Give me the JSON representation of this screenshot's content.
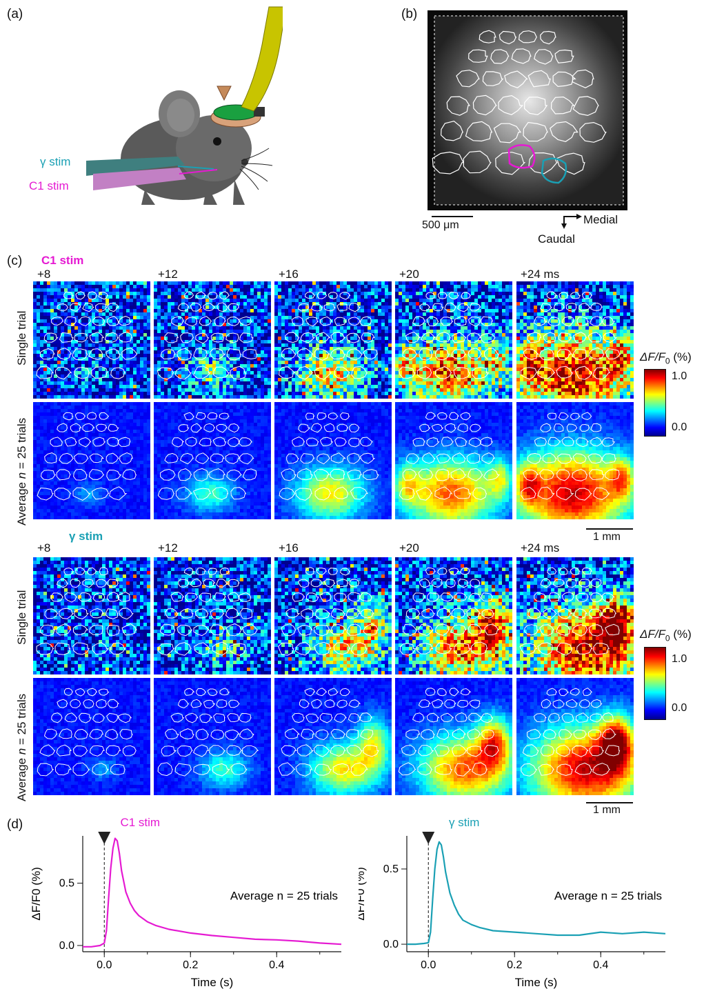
{
  "panel_a": {
    "label": "(a)",
    "gamma_stim": "γ stim",
    "c1_stim": "C1 stim",
    "colors": {
      "gamma": "#1aa0b4",
      "c1": "#e51ad2",
      "fiber": "#c8c400",
      "mouse": "#555555"
    }
  },
  "panel_b": {
    "label": "(b)",
    "scale_label": "500 μm",
    "medial": "Medial",
    "caudal": "Caudal",
    "colors": {
      "c1_roi": "#e51ad2",
      "gamma_roi": "#1aa0b4"
    }
  },
  "panel_c": {
    "label": "(c)",
    "c1_title": "C1 stim",
    "gamma_title": "γ stim",
    "time_labels": [
      "+8",
      "+12",
      "+16",
      "+20",
      "+24 ms"
    ],
    "row_single": "Single trial",
    "row_average_prefix": "Average ",
    "row_average_n": "n",
    "row_average_suffix": " = 25 trials",
    "colorbar_title_prefix": "ΔF/F",
    "colorbar_sub": "0",
    "colorbar_unit": " (%)",
    "colorbar_ticks": [
      "1.0",
      "0.0"
    ],
    "scale_label": "1 mm",
    "colormap": [
      "#00008f",
      "#0000ff",
      "#0080ff",
      "#00ffff",
      "#80ff80",
      "#ffff00",
      "#ff8000",
      "#ff0000",
      "#800000"
    ]
  },
  "panel_d": {
    "label": "(d)",
    "ylabel": "ΔF/F0 (%)",
    "xlabel": "Time (s)",
    "annotation": "Average n = 25 trials"
  },
  "chart_data": [
    {
      "type": "line",
      "title": "C1 stim",
      "xlabel": "Time (s)",
      "ylabel": "ΔF/F0 (%)",
      "xlim": [
        -0.05,
        0.55
      ],
      "ylim": [
        -0.05,
        0.88
      ],
      "xticks": [
        0.0,
        0.2,
        0.4
      ],
      "yticks": [
        0.0,
        0.5
      ],
      "stim_time": 0.0,
      "color": "#e51ad2",
      "x": [
        -0.05,
        -0.03,
        -0.01,
        0.0,
        0.005,
        0.01,
        0.015,
        0.02,
        0.025,
        0.03,
        0.035,
        0.04,
        0.05,
        0.06,
        0.07,
        0.08,
        0.1,
        0.12,
        0.15,
        0.2,
        0.25,
        0.3,
        0.35,
        0.4,
        0.45,
        0.5,
        0.55
      ],
      "y": [
        -0.01,
        -0.01,
        0.0,
        0.02,
        0.12,
        0.38,
        0.62,
        0.78,
        0.86,
        0.84,
        0.74,
        0.6,
        0.43,
        0.34,
        0.28,
        0.24,
        0.19,
        0.16,
        0.13,
        0.1,
        0.08,
        0.065,
        0.05,
        0.045,
        0.035,
        0.02,
        0.01
      ]
    },
    {
      "type": "line",
      "title": "γ stim",
      "xlabel": "Time (s)",
      "ylabel": "ΔF/F0 (%)",
      "xlim": [
        -0.05,
        0.55
      ],
      "ylim": [
        -0.05,
        0.72
      ],
      "xticks": [
        0.0,
        0.2,
        0.4
      ],
      "yticks": [
        0.0,
        0.5
      ],
      "stim_time": 0.0,
      "color": "#1aa0b4",
      "x": [
        -0.05,
        -0.03,
        -0.01,
        0.0,
        0.005,
        0.01,
        0.015,
        0.02,
        0.025,
        0.03,
        0.035,
        0.04,
        0.05,
        0.06,
        0.07,
        0.08,
        0.1,
        0.12,
        0.15,
        0.2,
        0.25,
        0.3,
        0.35,
        0.4,
        0.45,
        0.5,
        0.55
      ],
      "y": [
        0.0,
        0.0,
        0.005,
        0.01,
        0.08,
        0.3,
        0.5,
        0.63,
        0.68,
        0.66,
        0.58,
        0.48,
        0.34,
        0.26,
        0.2,
        0.16,
        0.13,
        0.11,
        0.09,
        0.08,
        0.07,
        0.06,
        0.06,
        0.08,
        0.07,
        0.08,
        0.07
      ]
    }
  ]
}
